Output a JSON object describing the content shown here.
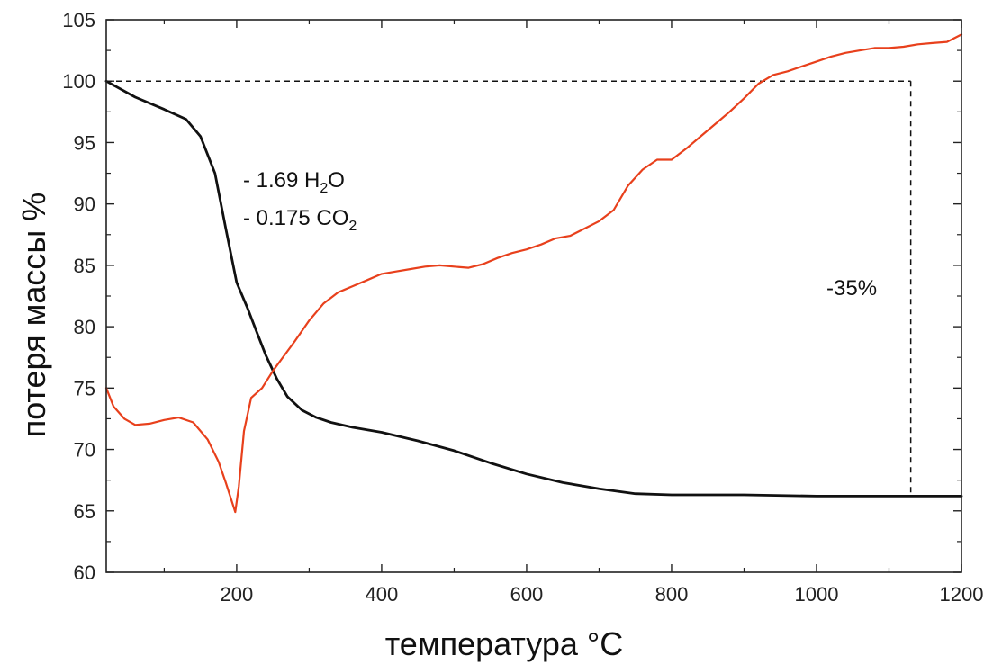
{
  "chart_data": {
    "type": "line",
    "xlabel": "температура °C",
    "ylabel": "потеря массы %",
    "xlim": [
      20,
      1200
    ],
    "ylim": [
      60,
      105
    ],
    "x_ticks": [
      200,
      400,
      600,
      800,
      1000,
      1200
    ],
    "y_ticks": [
      60,
      65,
      70,
      75,
      80,
      85,
      90,
      95,
      100,
      105
    ],
    "grid": false,
    "series": [
      {
        "color": "#111111",
        "x": [
          20,
          60,
          100,
          130,
          150,
          170,
          185,
          200,
          215,
          228,
          240,
          255,
          270,
          290,
          310,
          330,
          360,
          400,
          450,
          500,
          550,
          600,
          650,
          700,
          750,
          800,
          850,
          900,
          1000,
          1100,
          1200
        ],
        "y": [
          100,
          98.7,
          97.7,
          96.9,
          95.5,
          92.5,
          88,
          83.6,
          81.5,
          79.5,
          77.7,
          75.8,
          74.3,
          73.2,
          72.6,
          72.2,
          71.8,
          71.4,
          70.7,
          69.9,
          68.9,
          68,
          67.3,
          66.8,
          66.4,
          66.3,
          66.3,
          66.3,
          66.2,
          66.2,
          66.2
        ]
      },
      {
        "color": "#e8401c",
        "x": [
          20,
          30,
          45,
          60,
          80,
          100,
          120,
          140,
          160,
          175,
          185,
          192,
          198,
          203,
          210,
          220,
          235,
          250,
          265,
          280,
          300,
          320,
          340,
          360,
          380,
          400,
          420,
          440,
          460,
          480,
          500,
          520,
          540,
          560,
          580,
          600,
          620,
          640,
          660,
          680,
          700,
          720,
          740,
          760,
          780,
          800,
          820,
          840,
          860,
          880,
          900,
          920,
          940,
          960,
          980,
          1000,
          1020,
          1040,
          1060,
          1080,
          1100,
          1120,
          1140,
          1160,
          1180,
          1200
        ],
        "y": [
          75,
          73.5,
          72.5,
          72,
          72.1,
          72.4,
          72.6,
          72.2,
          70.8,
          69,
          67.3,
          66,
          64.9,
          67,
          71.5,
          74.2,
          75,
          76.4,
          77.6,
          78.8,
          80.5,
          81.9,
          82.8,
          83.3,
          83.8,
          84.3,
          84.5,
          84.7,
          84.9,
          85,
          84.9,
          84.8,
          85.1,
          85.6,
          86,
          86.3,
          86.7,
          87.2,
          87.4,
          88,
          88.6,
          89.5,
          91.5,
          92.8,
          93.6,
          93.6,
          94.5,
          95.5,
          96.5,
          97.5,
          98.6,
          99.8,
          100.5,
          100.8,
          101.2,
          101.6,
          102,
          102.3,
          102.5,
          102.7,
          102.7,
          102.8,
          103,
          103.1,
          103.2,
          103.8
        ]
      }
    ],
    "guides": {
      "level_y": 100,
      "x_start": 20,
      "drop_x": 1130,
      "drop_y_end": 66.2
    },
    "annotations": {
      "line1_prefix": "- 1.69 H",
      "line1_sub": "2",
      "line1_suffix": "O",
      "line2_prefix": "- 0.175 CO",
      "line2_sub": "2",
      "drop_label": "-35%"
    }
  }
}
